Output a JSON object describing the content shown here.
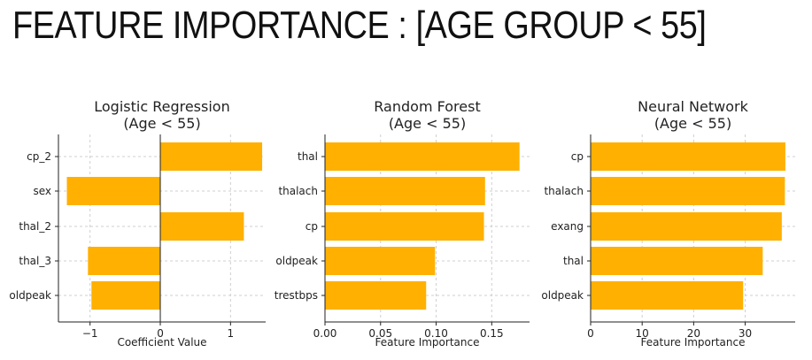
{
  "page": {
    "title": "FEATURE IMPORTANCE : [AGE GROUP < 55]"
  },
  "style": {
    "bar_color": "#FFB000",
    "grid_color": "#cfcfcf",
    "axis_color": "#222222"
  },
  "chart_data": [
    {
      "type": "bar",
      "orientation": "horizontal",
      "title_lines": [
        "Logistic Regression",
        "(Age < 55)"
      ],
      "categories": [
        "cp_2",
        "sex",
        "thal_2",
        "thal_3",
        "oldpeak"
      ],
      "values": [
        1.45,
        -1.33,
        1.19,
        -1.03,
        -0.98
      ],
      "xlabel": "Coefficient Value",
      "xlim": [
        -1.45,
        1.5
      ],
      "xticks": [
        -1,
        0,
        1
      ],
      "xtick_labels": [
        "−1",
        "0",
        "1"
      ],
      "grid": true
    },
    {
      "type": "bar",
      "orientation": "horizontal",
      "title_lines": [
        "Random Forest",
        "(Age < 55)"
      ],
      "categories": [
        "thal",
        "thalach",
        "cp",
        "oldpeak",
        "trestbps"
      ],
      "values": [
        0.175,
        0.144,
        0.143,
        0.099,
        0.091
      ],
      "xlabel": "Feature Importance",
      "xlim": [
        0,
        0.184
      ],
      "xticks": [
        0,
        0.05,
        0.1,
        0.15
      ],
      "xtick_labels": [
        "0.00",
        "0.05",
        "0.10",
        "0.15"
      ],
      "grid": true
    },
    {
      "type": "bar",
      "orientation": "horizontal",
      "title_lines": [
        "Neural Network",
        "(Age < 55)"
      ],
      "categories": [
        "cp",
        "thalach",
        "exang",
        "thal",
        "oldpeak"
      ],
      "values": [
        37.8,
        37.7,
        37.1,
        33.4,
        29.6
      ],
      "xlabel": "Feature Importance",
      "xlim": [
        0,
        39.7
      ],
      "xticks": [
        0,
        10,
        20,
        30
      ],
      "xtick_labels": [
        "0",
        "10",
        "20",
        "30"
      ],
      "grid": true
    }
  ]
}
